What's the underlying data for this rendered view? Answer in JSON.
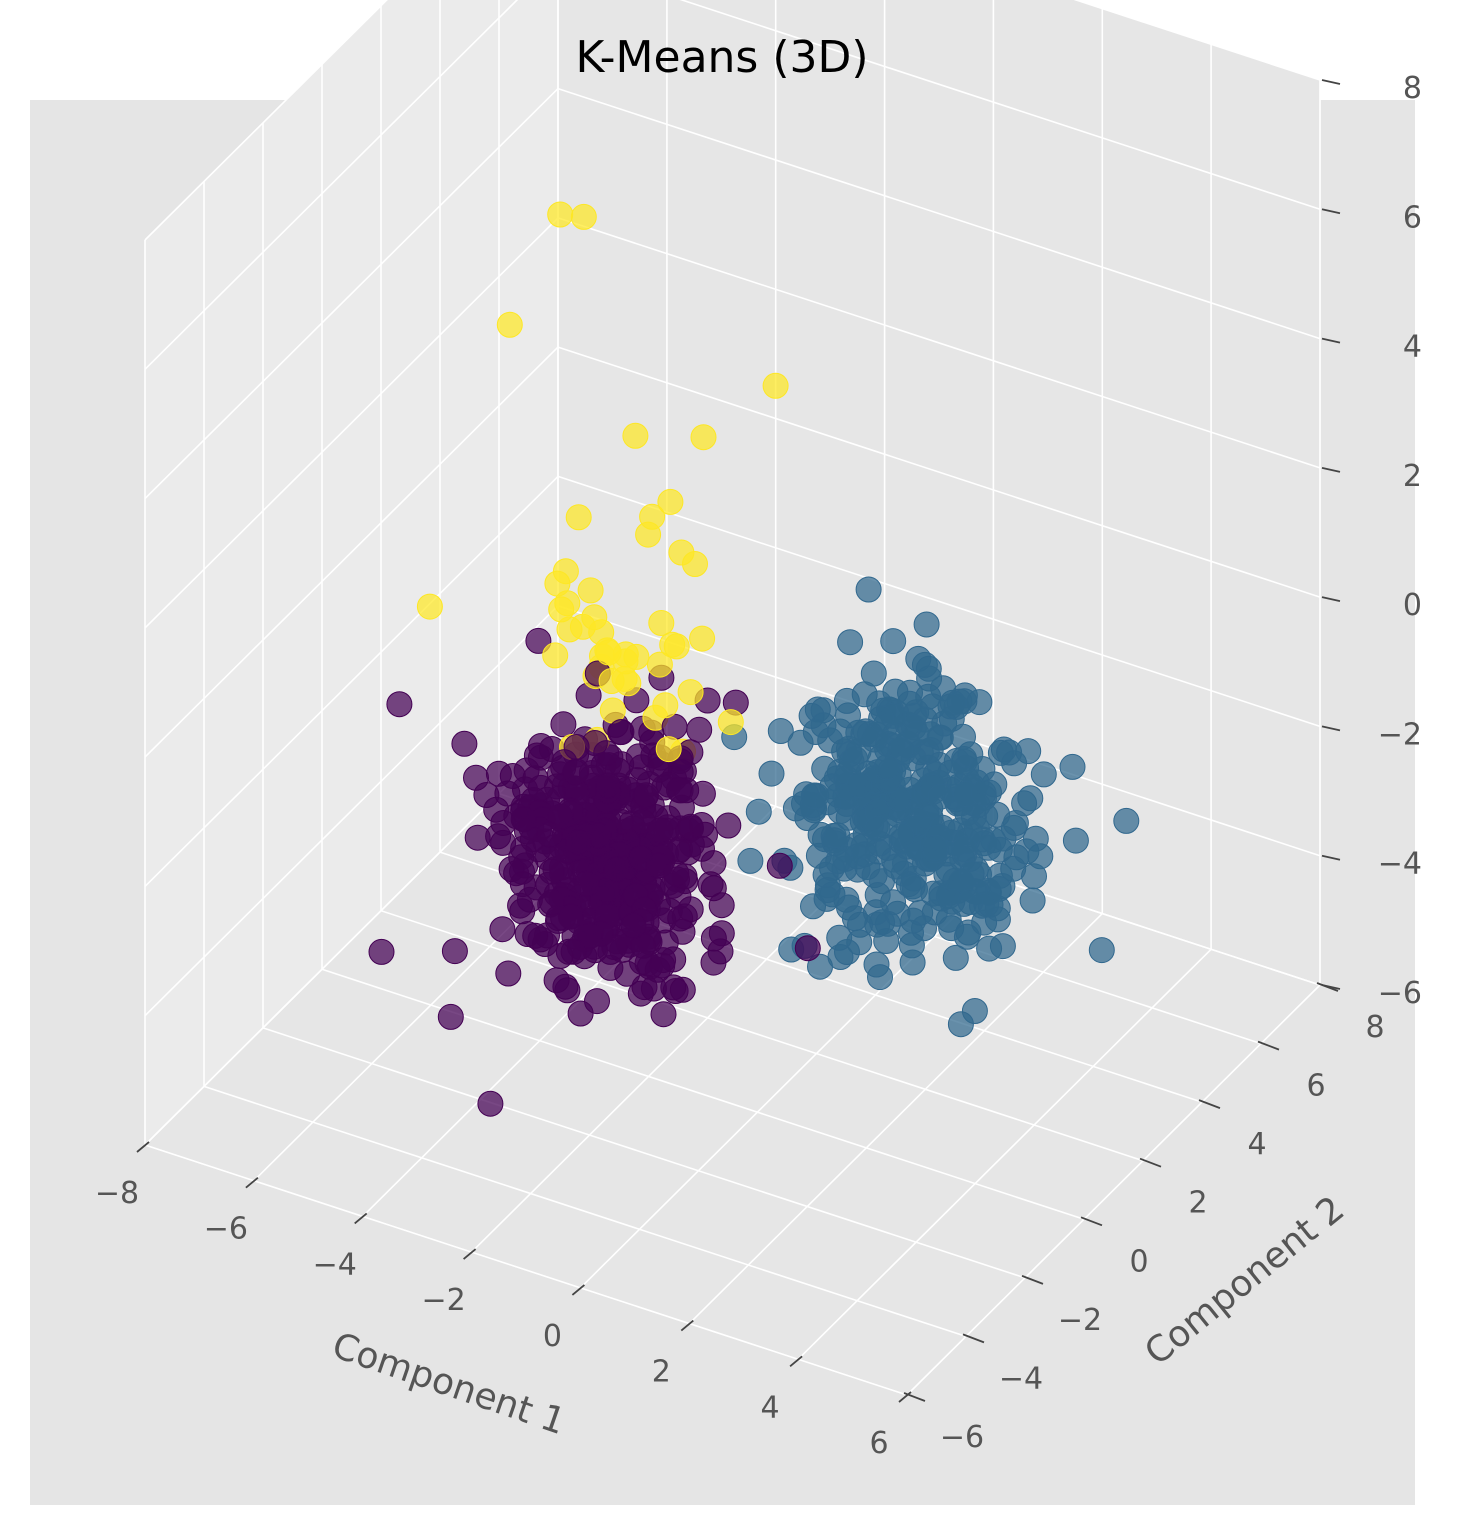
{
  "chart_data": {
    "type": "scatter",
    "projection": "3d",
    "title": "K-Means (3D)",
    "xlabel": "Component 1",
    "ylabel": "Component 2",
    "zlabel": "",
    "xticks": [
      "−8",
      "−6",
      "−4",
      "−2",
      "0",
      "2",
      "4",
      "6"
    ],
    "yticks": [
      "−6",
      "−4",
      "−2",
      "0",
      "2",
      "4",
      "6",
      "8"
    ],
    "zticks": [
      "−6",
      "−4",
      "−2",
      "0",
      "2",
      "4",
      "6",
      "8"
    ],
    "xlim": [
      -8,
      6
    ],
    "ylim": [
      -6,
      8
    ],
    "zlim": [
      -6,
      8
    ],
    "grid": true,
    "legend": "none",
    "colors": {
      "background": "#e5e5e5",
      "pane": "#e8e8e8",
      "grid": "#ffffff",
      "cluster_0": "#440154",
      "cluster_1": "#31688e",
      "cluster_2": "#fde725"
    },
    "series": [
      {
        "color": "#440154",
        "outliers": [
          {
            "x": -5.2,
            "y": -0.8,
            "z": -5.6
          },
          {
            "x": -3.6,
            "y": 0.2,
            "z": -5.2
          },
          {
            "x": -2.4,
            "y": 0.6,
            "z": -5.0
          },
          {
            "x": -4.8,
            "y": -1.4,
            "z": -4.2
          },
          {
            "x": -5.4,
            "y": 1.2,
            "z": -2.8
          },
          {
            "x": -1.4,
            "y": -0.6,
            "z": -4.6
          }
        ]
      },
      {
        "color": "#31688e",
        "outliers": [
          {
            "x": 2.6,
            "y": 6.0,
            "z": -3.8
          },
          {
            "x": 3.2,
            "y": 6.6,
            "z": -3.6
          },
          {
            "x": 0.2,
            "y": 3.4,
            "z": 0.6
          },
          {
            "x": 3.4,
            "y": 5.4,
            "z": -5.0
          },
          {
            "x": 1.0,
            "y": 3.8,
            "z": -4.6
          },
          {
            "x": 1.8,
            "y": 5.0,
            "z": -5.2
          }
        ]
      },
      {
        "color": "#fde725",
        "outliers": [
          {
            "x": -4.6,
            "y": 1.8,
            "z": 5.8
          },
          {
            "x": -4.6,
            "y": 2.6,
            "z": 5.4
          },
          {
            "x": -5.2,
            "y": 1.2,
            "z": 4.2
          },
          {
            "x": -3.0,
            "y": 1.4,
            "z": 3.0
          },
          {
            "x": -2.4,
            "y": 2.6,
            "z": 2.6
          },
          {
            "x": -1.4,
            "y": 3.2,
            "z": 3.4
          },
          {
            "x": -4.0,
            "y": 0.6,
            "z": 0.8
          },
          {
            "x": -5.8,
            "y": -0.4,
            "z": 0.4
          }
        ]
      }
    ]
  }
}
